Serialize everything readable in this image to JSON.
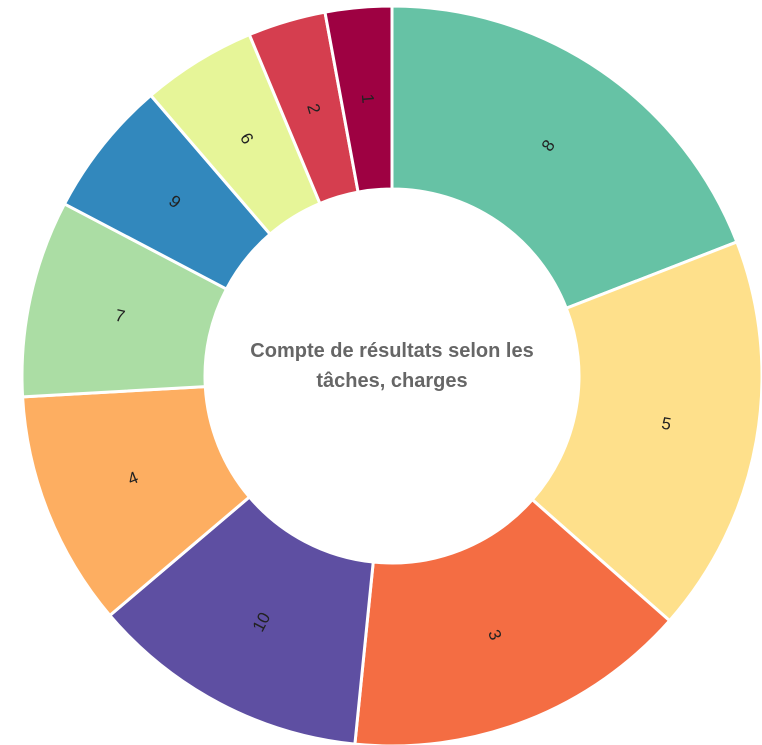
{
  "chart_data": {
    "type": "donut",
    "title": "Compte de résultats selon les tâches, charges",
    "categories": [
      "8",
      "5",
      "3",
      "10",
      "4",
      "7",
      "9",
      "6",
      "2",
      "1"
    ],
    "values": [
      19.1,
      17.4,
      15.1,
      12.2,
      10.3,
      8.6,
      6,
      5,
      3.4,
      2.9
    ],
    "colors": [
      "#66c2a5",
      "#fee08b",
      "#f46d43",
      "#5e4fa2",
      "#fdae61",
      "#abdda4",
      "#3288bd",
      "#e6f598",
      "#d53e4f",
      "#9e0142"
    ]
  }
}
